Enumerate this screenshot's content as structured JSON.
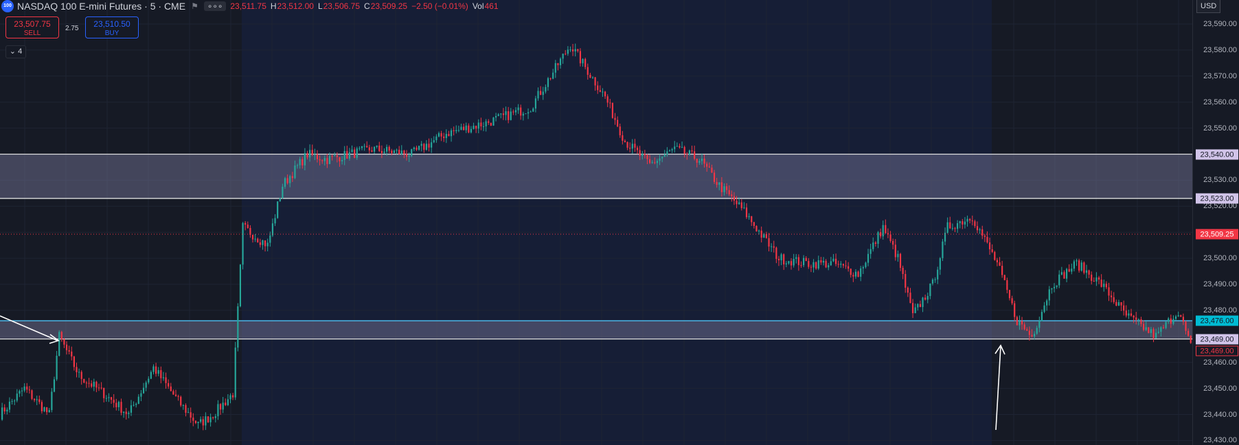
{
  "legend": {
    "logo_text": "100",
    "symbol": "NASDAQ 100 E-mini Futures · 5 · CME",
    "more": "∘∘∘",
    "o_value": "23,511.75",
    "h_key": "H",
    "h_value": "23,512.00",
    "l_key": "L",
    "l_value": "23,506.75",
    "c_key": "C",
    "c_value": "23,509.25",
    "change": "−2.50 (−0.01%)",
    "vol_key": "Vol",
    "vol_value": "461"
  },
  "trade": {
    "sell_price": "23,507.75",
    "sell_label": "SELL",
    "buy_price": "23,510.50",
    "buy_label": "BUY",
    "spread": "2.75"
  },
  "indicators_toggle": "⌄ 4",
  "currency": "USD",
  "colors": {
    "up": "#26a69a",
    "down": "#f23645",
    "accent": "#2962ff",
    "zone_fill": "#6f6f92",
    "cyan_line": "#4fc3f7",
    "session_bg": "#161e36"
  },
  "axis": {
    "ticks": [
      "23,590.00",
      "23,580.00",
      "23,570.00",
      "23,560.00",
      "23,550.00",
      "23,530.00",
      "23,520.00",
      "23,500.00",
      "23,490.00",
      "23,480.00",
      "23,460.00",
      "23,450.00",
      "23,440.00",
      "23,430.00"
    ],
    "tags": {
      "zone_high_top": "23,540.00",
      "zone_high_bottom": "23,523.00",
      "last_price": "23,509.25",
      "zone_low_top": "23,476.00",
      "zone_low_bottom": "23,469.00",
      "red_tag": "23,469.00"
    }
  },
  "chart_data": {
    "type": "candlestick",
    "price_range": [
      23430,
      23592
    ],
    "zones": [
      {
        "top": 23540.0,
        "bottom": 23523.0
      },
      {
        "top": 23476.0,
        "bottom": 23469.0
      }
    ],
    "last_price": 23509.25,
    "waypoints": [
      [
        0,
        23440
      ],
      [
        10,
        23450
      ],
      [
        20,
        23440
      ],
      [
        24,
        23470
      ],
      [
        32,
        23455
      ],
      [
        42,
        23448
      ],
      [
        52,
        23440
      ],
      [
        62,
        23458
      ],
      [
        72,
        23445
      ],
      [
        80,
        23436
      ],
      [
        86,
        23440
      ],
      [
        94,
        23448
      ],
      [
        98,
        23512
      ],
      [
        108,
        23505
      ],
      [
        114,
        23528
      ],
      [
        124,
        23540
      ],
      [
        132,
        23538
      ],
      [
        150,
        23542
      ],
      [
        166,
        23540
      ],
      [
        180,
        23548
      ],
      [
        196,
        23552
      ],
      [
        214,
        23558
      ],
      [
        230,
        23582
      ],
      [
        244,
        23562
      ],
      [
        252,
        23545
      ],
      [
        262,
        23536
      ],
      [
        272,
        23542
      ],
      [
        282,
        23538
      ],
      [
        290,
        23528
      ],
      [
        300,
        23518
      ],
      [
        314,
        23500
      ],
      [
        326,
        23498
      ],
      [
        336,
        23498
      ],
      [
        346,
        23494
      ],
      [
        356,
        23512
      ],
      [
        362,
        23500
      ],
      [
        368,
        23478
      ],
      [
        376,
        23490
      ],
      [
        382,
        23512
      ],
      [
        392,
        23516
      ],
      [
        402,
        23498
      ],
      [
        410,
        23476
      ],
      [
        416,
        23470
      ],
      [
        424,
        23490
      ],
      [
        434,
        23498
      ],
      [
        444,
        23490
      ],
      [
        454,
        23478
      ],
      [
        466,
        23470
      ],
      [
        475,
        23480
      ],
      [
        480,
        23466
      ]
    ]
  }
}
